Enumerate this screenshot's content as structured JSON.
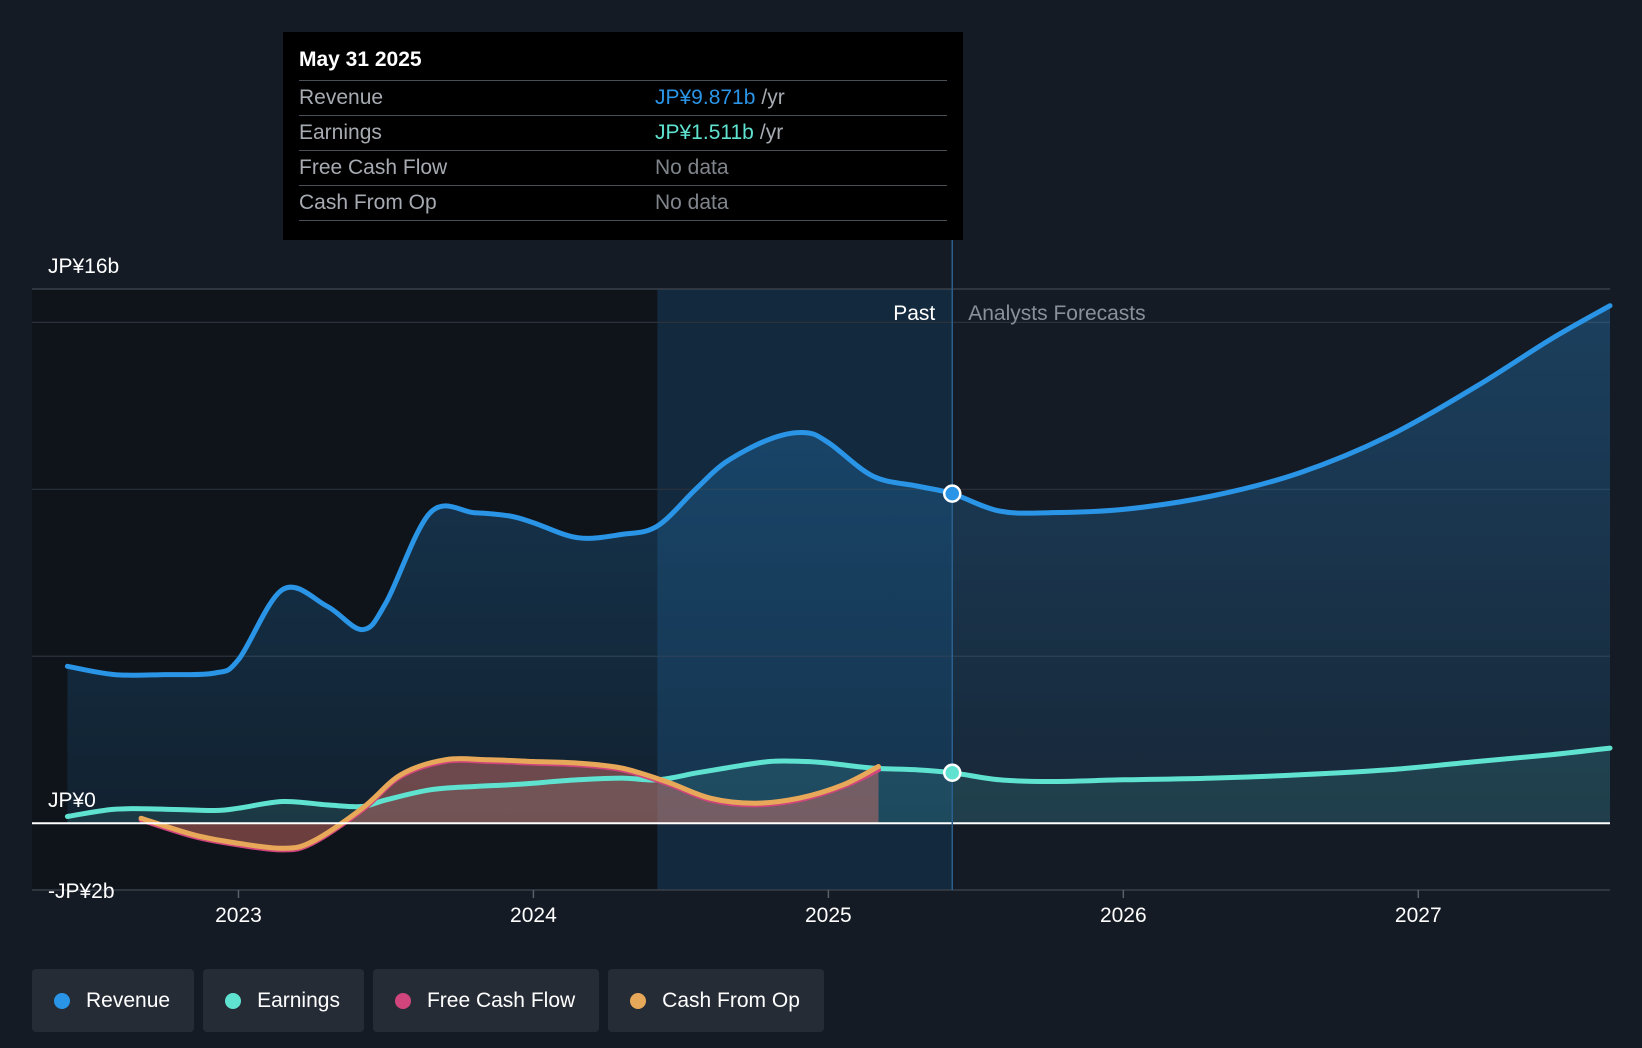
{
  "tooltip": {
    "date": "May 31 2025",
    "rows": [
      {
        "label": "Revenue",
        "value": "JP¥9.871b",
        "unit": "/yr",
        "color": "#2a95e6"
      },
      {
        "label": "Earnings",
        "value": "JP¥1.511b",
        "unit": "/yr",
        "color": "#5fe3d0"
      },
      {
        "label": "Free Cash Flow",
        "value": "No data",
        "unit": "",
        "color": "#80858c"
      },
      {
        "label": "Cash From Op",
        "value": "No data",
        "unit": "",
        "color": "#80858c"
      }
    ]
  },
  "regions": {
    "past_label": "Past",
    "forecast_label": "Analysts Forecasts"
  },
  "legend": [
    {
      "label": "Revenue",
      "color": "#2a95e6"
    },
    {
      "label": "Earnings",
      "color": "#5fe3d0"
    },
    {
      "label": "Free Cash Flow",
      "color": "#d0467c"
    },
    {
      "label": "Cash From Op",
      "color": "#e8a85a"
    }
  ],
  "chart_data": {
    "type": "area",
    "units": "JP¥ billions",
    "ylim": [
      -2,
      16
    ],
    "y_tick_labels": [
      {
        "value": 16,
        "label": "JP¥16b"
      },
      {
        "value": 0,
        "label": "JP¥0"
      },
      {
        "value": -2,
        "label": "-JP¥2b"
      }
    ],
    "gridlines": [
      15,
      10,
      5
    ],
    "xlim": [
      2022.3,
      2027.65
    ],
    "x_ticks": [
      2023,
      2024,
      2025,
      2026,
      2027
    ],
    "highlight_band": [
      2024.42,
      2025.42
    ],
    "past_forecast_divider": 2025.42,
    "series": [
      {
        "name": "Revenue",
        "color": "#2a95e6",
        "points": [
          [
            2022.42,
            4.7
          ],
          [
            2022.58,
            4.45
          ],
          [
            2022.75,
            4.45
          ],
          [
            2022.92,
            4.5
          ],
          [
            2023.0,
            4.9
          ],
          [
            2023.15,
            7.0
          ],
          [
            2023.3,
            6.5
          ],
          [
            2023.42,
            5.8
          ],
          [
            2023.5,
            6.6
          ],
          [
            2023.65,
            9.3
          ],
          [
            2023.8,
            9.3
          ],
          [
            2023.92,
            9.2
          ],
          [
            2024.0,
            9.0
          ],
          [
            2024.15,
            8.55
          ],
          [
            2024.3,
            8.65
          ],
          [
            2024.42,
            8.9
          ],
          [
            2024.55,
            10.0
          ],
          [
            2024.65,
            10.8
          ],
          [
            2024.8,
            11.5
          ],
          [
            2024.92,
            11.7
          ],
          [
            2025.0,
            11.4
          ],
          [
            2025.15,
            10.4
          ],
          [
            2025.3,
            10.1
          ],
          [
            2025.42,
            9.871
          ],
          [
            2025.58,
            9.35
          ],
          [
            2025.75,
            9.3
          ],
          [
            2026.0,
            9.4
          ],
          [
            2026.3,
            9.8
          ],
          [
            2026.6,
            10.5
          ],
          [
            2026.9,
            11.6
          ],
          [
            2027.2,
            13.1
          ],
          [
            2027.45,
            14.5
          ],
          [
            2027.65,
            15.5
          ]
        ]
      },
      {
        "name": "Earnings",
        "color": "#5fe3d0",
        "points": [
          [
            2022.42,
            0.2
          ],
          [
            2022.58,
            0.42
          ],
          [
            2022.75,
            0.42
          ],
          [
            2022.92,
            0.38
          ],
          [
            2023.0,
            0.45
          ],
          [
            2023.15,
            0.65
          ],
          [
            2023.3,
            0.55
          ],
          [
            2023.42,
            0.5
          ],
          [
            2023.5,
            0.7
          ],
          [
            2023.65,
            1.0
          ],
          [
            2023.8,
            1.1
          ],
          [
            2023.92,
            1.15
          ],
          [
            2024.0,
            1.2
          ],
          [
            2024.15,
            1.3
          ],
          [
            2024.3,
            1.35
          ],
          [
            2024.42,
            1.3
          ],
          [
            2024.55,
            1.5
          ],
          [
            2024.65,
            1.65
          ],
          [
            2024.8,
            1.85
          ],
          [
            2024.92,
            1.85
          ],
          [
            2025.0,
            1.8
          ],
          [
            2025.15,
            1.65
          ],
          [
            2025.3,
            1.6
          ],
          [
            2025.42,
            1.511
          ],
          [
            2025.58,
            1.3
          ],
          [
            2025.75,
            1.25
          ],
          [
            2026.0,
            1.3
          ],
          [
            2026.3,
            1.35
          ],
          [
            2026.6,
            1.45
          ],
          [
            2026.9,
            1.6
          ],
          [
            2027.2,
            1.85
          ],
          [
            2027.45,
            2.05
          ],
          [
            2027.65,
            2.25
          ]
        ]
      },
      {
        "name": "Free Cash Flow",
        "color": "#d0467c",
        "points": [
          [
            2022.67,
            0.1
          ],
          [
            2022.85,
            -0.4
          ],
          [
            2023.0,
            -0.65
          ],
          [
            2023.15,
            -0.8
          ],
          [
            2023.25,
            -0.6
          ],
          [
            2023.42,
            0.4
          ],
          [
            2023.55,
            1.4
          ],
          [
            2023.7,
            1.85
          ],
          [
            2023.85,
            1.85
          ],
          [
            2024.0,
            1.8
          ],
          [
            2024.15,
            1.75
          ],
          [
            2024.3,
            1.6
          ],
          [
            2024.45,
            1.2
          ],
          [
            2024.6,
            0.7
          ],
          [
            2024.75,
            0.55
          ],
          [
            2024.9,
            0.7
          ],
          [
            2025.05,
            1.1
          ],
          [
            2025.17,
            1.6
          ]
        ]
      },
      {
        "name": "Cash From Op",
        "color": "#e8a85a",
        "points": [
          [
            2022.67,
            0.15
          ],
          [
            2022.85,
            -0.35
          ],
          [
            2023.0,
            -0.6
          ],
          [
            2023.15,
            -0.75
          ],
          [
            2023.25,
            -0.55
          ],
          [
            2023.42,
            0.45
          ],
          [
            2023.55,
            1.45
          ],
          [
            2023.7,
            1.9
          ],
          [
            2023.85,
            1.9
          ],
          [
            2024.0,
            1.85
          ],
          [
            2024.15,
            1.8
          ],
          [
            2024.3,
            1.65
          ],
          [
            2024.45,
            1.25
          ],
          [
            2024.6,
            0.75
          ],
          [
            2024.75,
            0.6
          ],
          [
            2024.9,
            0.75
          ],
          [
            2025.05,
            1.15
          ],
          [
            2025.17,
            1.7
          ]
        ]
      }
    ]
  }
}
